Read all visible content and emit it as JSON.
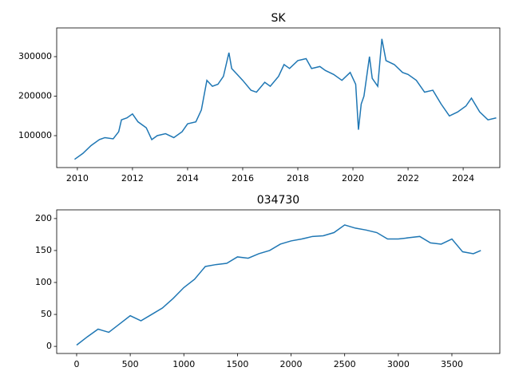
{
  "chart_data": [
    {
      "type": "line",
      "title": "SK",
      "x": [
        2009.9,
        2010.2,
        2010.5,
        2010.8,
        2011.0,
        2011.3,
        2011.5,
        2011.6,
        2011.8,
        2012.0,
        2012.2,
        2012.5,
        2012.7,
        2012.9,
        2013.2,
        2013.5,
        2013.8,
        2014.0,
        2014.3,
        2014.5,
        2014.7,
        2014.9,
        2015.1,
        2015.3,
        2015.5,
        2015.6,
        2015.8,
        2016.0,
        2016.3,
        2016.5,
        2016.8,
        2017.0,
        2017.3,
        2017.5,
        2017.7,
        2018.0,
        2018.3,
        2018.5,
        2018.8,
        2019.0,
        2019.3,
        2019.6,
        2019.9,
        2020.1,
        2020.2,
        2020.3,
        2020.4,
        2020.6,
        2020.7,
        2020.9,
        2021.05,
        2021.2,
        2021.5,
        2021.8,
        2022.0,
        2022.3,
        2022.6,
        2022.9,
        2023.2,
        2023.5,
        2023.8,
        2024.1,
        2024.3,
        2024.6,
        2024.9,
        2025.2
      ],
      "series": [
        {
          "color": "#1f77b4",
          "values": [
            40000,
            55000,
            75000,
            90000,
            95000,
            92000,
            110000,
            140000,
            145000,
            155000,
            135000,
            120000,
            90000,
            100000,
            105000,
            95000,
            110000,
            130000,
            135000,
            165000,
            240000,
            225000,
            230000,
            250000,
            310000,
            270000,
            255000,
            240000,
            215000,
            210000,
            235000,
            225000,
            250000,
            280000,
            270000,
            290000,
            295000,
            270000,
            275000,
            265000,
            255000,
            240000,
            260000,
            230000,
            115000,
            180000,
            200000,
            300000,
            245000,
            225000,
            345000,
            290000,
            280000,
            260000,
            255000,
            240000,
            210000,
            215000,
            180000,
            150000,
            160000,
            175000,
            195000,
            160000,
            140000,
            145000
          ]
        }
      ],
      "xlim": [
        2009.25,
        2025.33
      ],
      "xticks": [
        2010,
        2012,
        2014,
        2016,
        2018,
        2020,
        2022,
        2024
      ],
      "ylim": [
        19200,
        372700
      ],
      "yticks": [
        100000,
        200000,
        300000
      ]
    },
    {
      "type": "line",
      "title": "034730",
      "x": [
        0,
        100,
        200,
        300,
        400,
        500,
        600,
        700,
        800,
        900,
        1000,
        1100,
        1200,
        1300,
        1400,
        1500,
        1600,
        1700,
        1800,
        1900,
        2000,
        2100,
        2200,
        2300,
        2400,
        2500,
        2600,
        2700,
        2800,
        2900,
        3000,
        3100,
        3200,
        3300,
        3400,
        3500,
        3600,
        3700,
        3770
      ],
      "series": [
        {
          "color": "#1f77b4",
          "values": [
            2,
            15,
            27,
            22,
            35,
            48,
            40,
            50,
            60,
            75,
            92,
            105,
            125,
            128,
            130,
            140,
            138,
            145,
            150,
            160,
            165,
            168,
            172,
            173,
            178,
            190,
            185,
            182,
            178,
            168,
            168,
            170,
            172,
            162,
            160,
            168,
            148,
            145,
            150
          ]
        }
      ],
      "xlim": [
        -186,
        3947
      ],
      "xticks": [
        0,
        500,
        1000,
        1500,
        2000,
        2500,
        3000,
        3500
      ],
      "ylim": [
        -11.1,
        213.6
      ],
      "yticks": [
        0,
        50,
        100,
        150,
        200
      ]
    }
  ]
}
